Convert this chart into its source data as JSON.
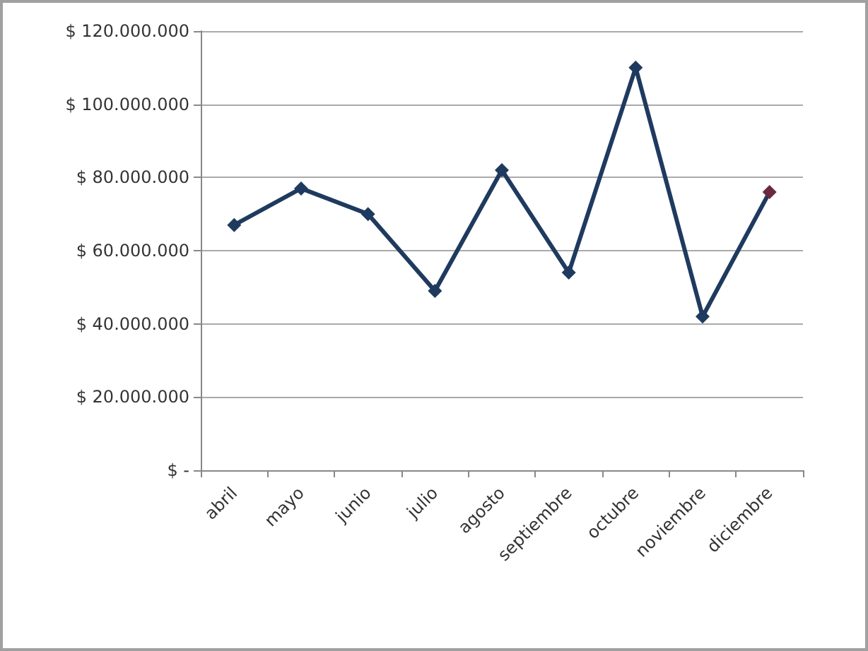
{
  "chart_data": {
    "type": "line",
    "categories": [
      "abril",
      "mayo",
      "junio",
      "julio",
      "agosto",
      "septiembre",
      "octubre",
      "noviembre",
      "diciembre"
    ],
    "series": [
      {
        "color": "#1f3a5f",
        "colors": [
          "#1f3a5f",
          "#1f3a5f",
          "#1f3a5f",
          "#1f3a5f",
          "#1f3a5f",
          "#1f3a5f",
          "#1f3a5f",
          "#1f3a5f",
          "#6b2a3f"
        ],
        "values": [
          67000000,
          77000000,
          70000000,
          49000000,
          82000000,
          54000000,
          110000000,
          42000000,
          76000000
        ]
      }
    ],
    "ylim": [
      0,
      120000000
    ],
    "yticks": [
      {
        "value": 0,
        "label": "$ -"
      },
      {
        "value": 20000000,
        "label": "$ 20.000.000"
      },
      {
        "value": 40000000,
        "label": "$ 40.000.000"
      },
      {
        "value": 60000000,
        "label": "$ 60.000.000"
      },
      {
        "value": 80000000,
        "label": "$ 80.000.000"
      },
      {
        "value": 100000000,
        "label": "$ 100.000.000"
      },
      {
        "value": 120000000,
        "label": "$ 120.000.000"
      }
    ],
    "grid": "y",
    "marker": "diamond",
    "line_style": "solid"
  }
}
